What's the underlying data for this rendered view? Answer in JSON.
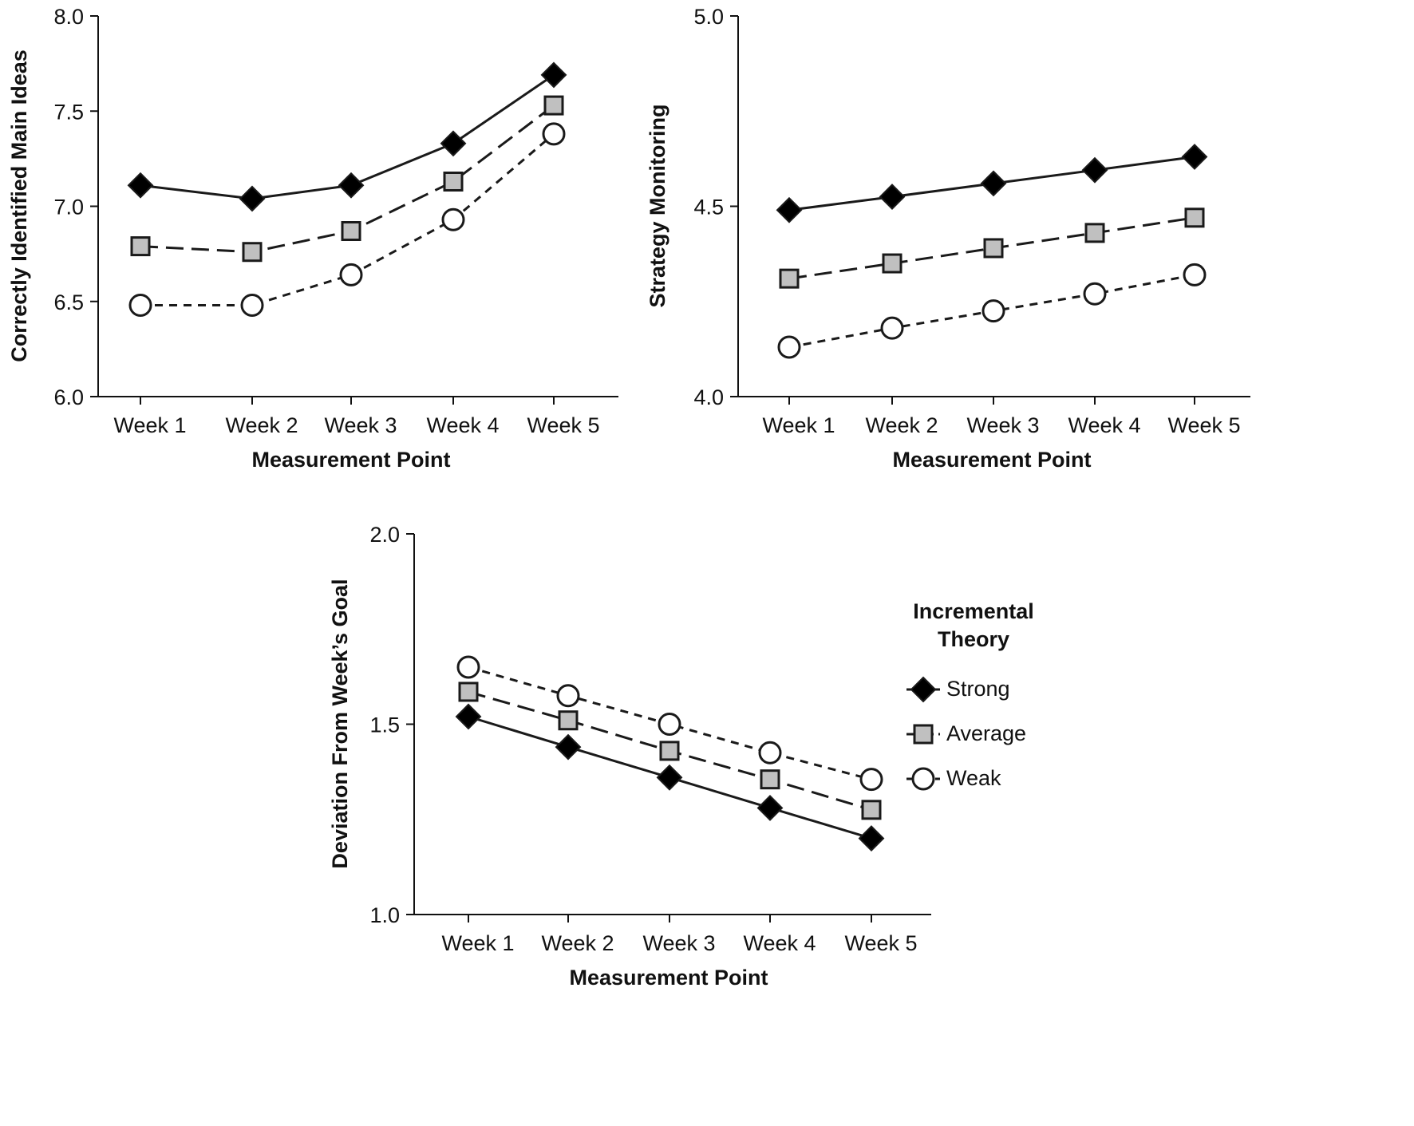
{
  "chart_data": [
    {
      "type": "line",
      "title": "",
      "xlabel": "Measurement Point",
      "ylabel": "Correctly Identified Main Ideas",
      "categories": [
        "Week 1",
        "Week 2",
        "Week 3",
        "Week 4",
        "Week 5"
      ],
      "ylim": [
        6.0,
        8.0
      ],
      "yticks": [
        "6.0",
        "6.5",
        "7.0",
        "7.5",
        "8.0"
      ],
      "grid": false,
      "series": [
        {
          "name": "Strong",
          "values": [
            7.11,
            7.04,
            7.11,
            7.33,
            7.69
          ]
        },
        {
          "name": "Average",
          "values": [
            6.79,
            6.76,
            6.87,
            7.13,
            7.53
          ]
        },
        {
          "name": "Weak",
          "values": [
            6.48,
            6.48,
            6.64,
            6.93,
            7.38
          ]
        }
      ]
    },
    {
      "type": "line",
      "title": "",
      "xlabel": "Measurement Point",
      "ylabel": "Strategy Monitoring",
      "categories": [
        "Week 1",
        "Week 2",
        "Week 3",
        "Week 4",
        "Week 5"
      ],
      "ylim": [
        4.0,
        5.0
      ],
      "yticks": [
        "4.0",
        "4.5",
        "5.0"
      ],
      "grid": false,
      "series": [
        {
          "name": "Strong",
          "values": [
            4.49,
            4.525,
            4.56,
            4.595,
            4.63
          ]
        },
        {
          "name": "Average",
          "values": [
            4.31,
            4.35,
            4.39,
            4.43,
            4.47
          ]
        },
        {
          "name": "Weak",
          "values": [
            4.13,
            4.18,
            4.225,
            4.27,
            4.32
          ]
        }
      ]
    },
    {
      "type": "line",
      "title": "",
      "xlabel": "Measurement Point",
      "ylabel": "Deviation From Week’s Goal",
      "categories": [
        "Week 1",
        "Week 2",
        "Week 3",
        "Week 4",
        "Week 5"
      ],
      "ylim": [
        1.0,
        2.0
      ],
      "yticks": [
        "1.0",
        "1.5",
        "2.0"
      ],
      "grid": false,
      "series": [
        {
          "name": "Strong",
          "values": [
            1.52,
            1.44,
            1.36,
            1.28,
            1.2
          ]
        },
        {
          "name": "Average",
          "values": [
            1.585,
            1.51,
            1.43,
            1.355,
            1.275
          ]
        },
        {
          "name": "Weak",
          "values": [
            1.65,
            1.575,
            1.5,
            1.425,
            1.355
          ]
        }
      ]
    }
  ],
  "legend": {
    "position": "right",
    "title_line1": "Incremental",
    "title_line2": "Theory",
    "entries": [
      {
        "name": "Strong",
        "marker": "diamond",
        "dash": "solid"
      },
      {
        "name": "Average",
        "marker": "square",
        "dash": "long-dash"
      },
      {
        "name": "Weak",
        "marker": "circle",
        "dash": "short-dash"
      }
    ]
  },
  "colors": {
    "axis": "#111111",
    "strong_fill": "#000000",
    "average_fill": "#c0c0c0",
    "weak_fill": "#ffffff",
    "stroke": "#1a1a1a"
  }
}
